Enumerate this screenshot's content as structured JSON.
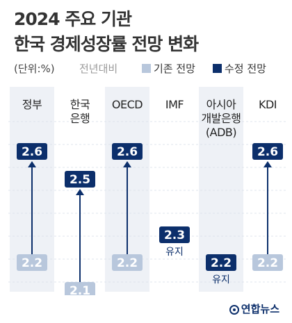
{
  "title_line1": "2024 주요 기관",
  "title_line2": "한국 경제성장률 전망 변화",
  "unit": "(단위:%)",
  "basis": "전년대비",
  "legend": {
    "old": "기존 전망",
    "new": "수정 전망"
  },
  "source": "연합뉴스",
  "colors": {
    "old": "#b8c7dc",
    "new": "#0c2f6b",
    "band": "#eef1f6"
  },
  "chart_data": {
    "type": "table",
    "categories": [
      [
        "정부"
      ],
      [
        "한국",
        "은행"
      ],
      [
        "OECD"
      ],
      [
        "IMF"
      ],
      [
        "아시아",
        "개발은행",
        "(ADB)"
      ],
      [
        "KDI"
      ]
    ],
    "series": [
      {
        "name": "기존 전망",
        "values": [
          2.2,
          2.1,
          2.2,
          null,
          null,
          2.2
        ]
      },
      {
        "name": "수정 전망",
        "values": [
          2.6,
          2.5,
          2.6,
          2.3,
          2.2,
          2.6
        ]
      }
    ],
    "status": [
      null,
      null,
      null,
      "유지",
      "유지",
      null
    ],
    "ylim": [
      2.0,
      2.7
    ]
  }
}
